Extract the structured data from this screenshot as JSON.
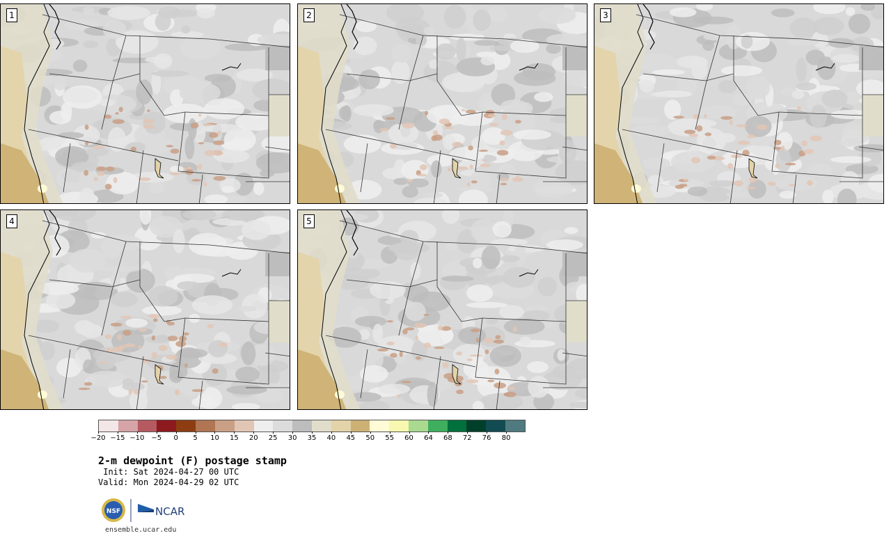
{
  "panels": [
    {
      "label": "1"
    },
    {
      "label": "2"
    },
    {
      "label": "3"
    },
    {
      "label": "4"
    },
    {
      "label": "5"
    }
  ],
  "colorbar": {
    "colors": [
      "#f3e6e6",
      "#d6a3a6",
      "#b65a62",
      "#8c1a1f",
      "#8c3d12",
      "#b07552",
      "#c99f85",
      "#e2c6b5",
      "#eeeeee",
      "#dcdcdc",
      "#bdbdbd",
      "#e0ddcb",
      "#e3d3a8",
      "#cdb174",
      "#fffbd6",
      "#f8f8b0",
      "#a9da8f",
      "#3fae5e",
      "#00703c",
      "#00402a",
      "#124c52",
      "#4f7b80"
    ],
    "ticks": [
      "−20",
      "−15",
      "−10",
      "−5",
      "0",
      "5",
      "10",
      "15",
      "20",
      "25",
      "30",
      "35",
      "40",
      "45",
      "50",
      "55",
      "60",
      "64",
      "68",
      "72",
      "76",
      "80"
    ]
  },
  "title": "2-m dewpoint (F) postage stamp",
  "init": " Init: Sat 2024-04-27 00 UTC",
  "valid": "Valid: Mon 2024-04-29 02 UTC",
  "logos": {
    "nsf": "NSF",
    "ncar": "NCAR"
  },
  "url": "ensemble.ucar.edu"
}
